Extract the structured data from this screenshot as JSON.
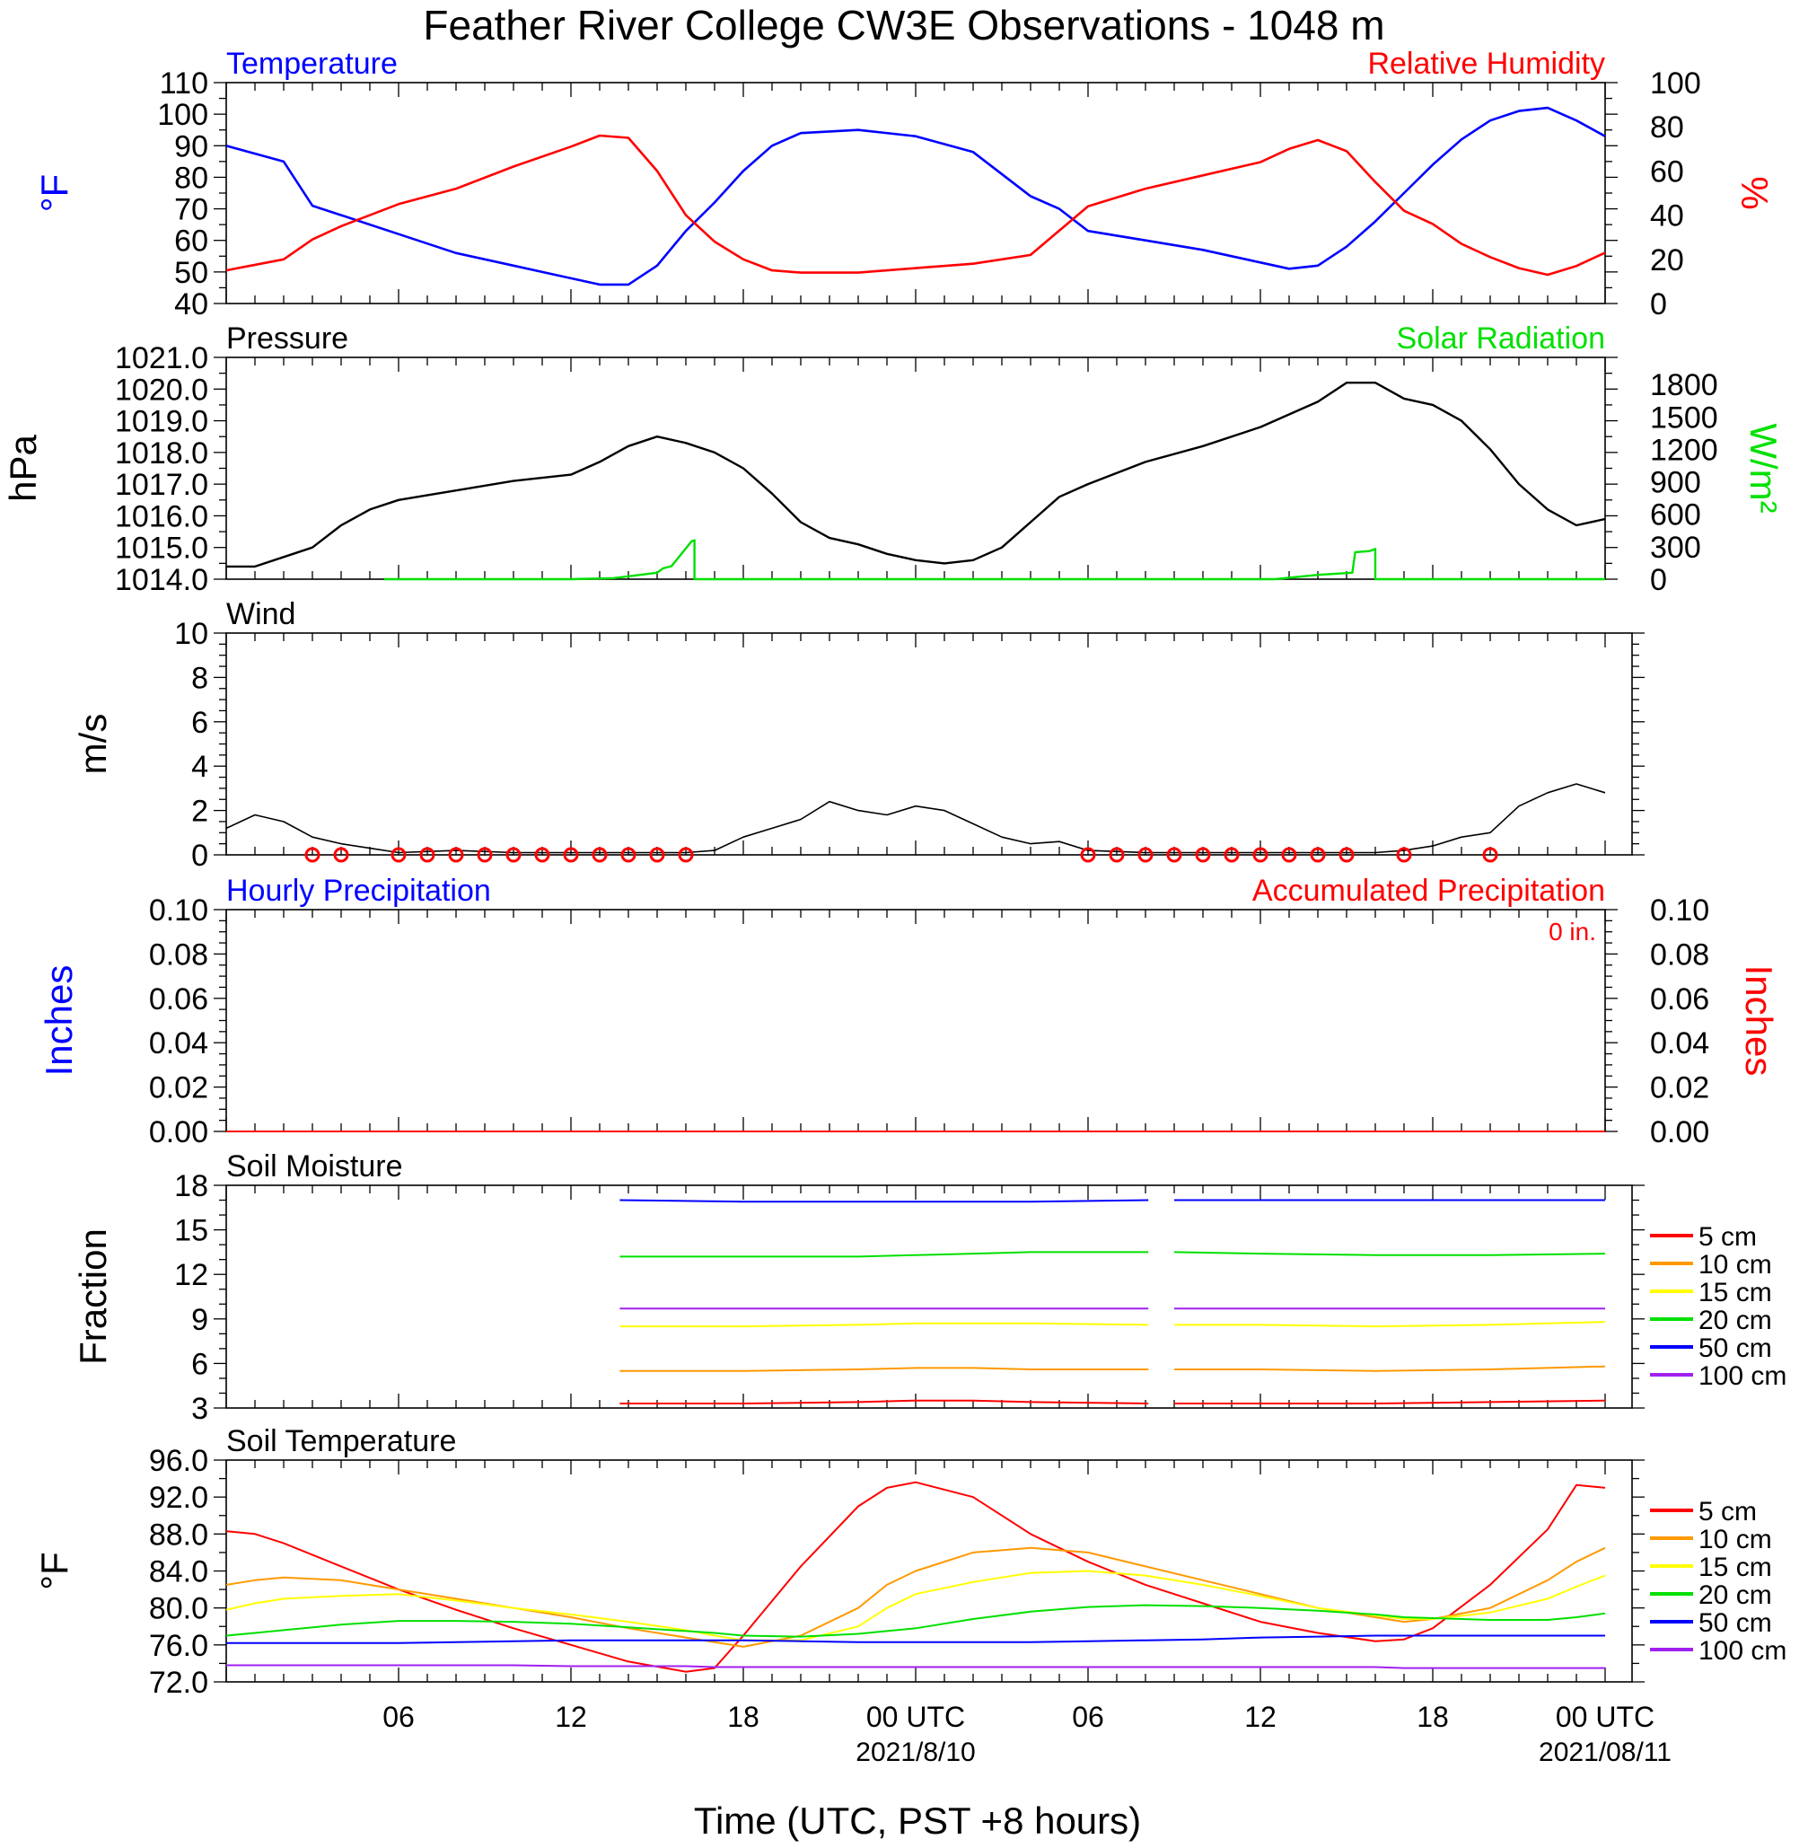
{
  "title": "Feather River College CW3E Observations - 1048 m",
  "x_axis": {
    "label": "Time (UTC, PST +8 hours)",
    "tick_labels": [
      "06",
      "12",
      "18",
      "00 UTC",
      "06",
      "12",
      "18",
      "00 UTC"
    ],
    "date_labels": [
      "2021/8/10",
      "2021/08/11"
    ]
  },
  "colors": {
    "red": "#ff0000",
    "blue": "#0000ff",
    "green": "#00e000",
    "black": "#000000",
    "orange": "#ff9900",
    "yellow": "#ffff00",
    "purple": "#a020f0"
  },
  "chart_data": [
    {
      "type": "line",
      "id": "temp_rh",
      "left_title": "Temperature",
      "right_title": "Relative Humidity",
      "ylabel_left": "°F",
      "ylabel_right": "%",
      "ylim_left": [
        40,
        110
      ],
      "ylim_right": [
        0,
        100
      ],
      "yticks_left": [
        "110",
        "100",
        "90",
        "80",
        "70",
        "60",
        "50",
        "40"
      ],
      "yticks_right": [
        "100",
        "80",
        "60",
        "40",
        "20",
        "0"
      ],
      "x_hours": [
        0,
        2,
        3,
        4,
        6,
        8,
        10,
        12,
        13,
        14,
        15,
        16,
        17,
        18,
        19,
        20,
        22,
        24,
        26,
        28,
        29,
        30,
        32,
        34,
        36,
        37,
        38,
        39,
        40,
        41,
        42,
        43,
        44,
        45,
        46,
        47,
        48
      ],
      "series": [
        {
          "name": "Temperature",
          "color": "#0000ff",
          "axis": "left",
          "values": [
            90,
            85,
            71,
            68,
            62,
            56,
            52,
            48,
            46,
            46,
            52,
            63,
            72,
            82,
            90,
            94,
            95,
            93,
            88,
            74,
            70,
            63,
            60,
            57,
            53,
            51,
            52,
            58,
            66,
            75,
            84,
            92,
            98,
            101,
            102,
            98,
            93
          ]
        },
        {
          "name": "Relative Humidity",
          "color": "#ff0000",
          "axis": "right",
          "values": [
            15,
            20,
            29,
            35,
            45,
            52,
            62,
            71,
            76,
            75,
            60,
            40,
            28,
            20,
            15,
            14,
            14,
            16,
            18,
            22,
            33,
            44,
            52,
            58,
            64,
            70,
            74,
            69,
            55,
            42,
            36,
            27,
            21,
            16,
            13,
            17,
            23
          ]
        }
      ]
    },
    {
      "type": "line",
      "id": "pressure_solar",
      "left_title": "Pressure",
      "right_title": "Solar Radiation",
      "ylabel_left": "hPa",
      "ylabel_right": "W/m²",
      "ylim_left": [
        1014.0,
        1021.0
      ],
      "ylim_right": [
        0,
        2050
      ],
      "yticks_left": [
        "1021.0",
        "1020.0",
        "1019.0",
        "1018.0",
        "1017.0",
        "1016.0",
        "1015.0",
        "1014.0"
      ],
      "yticks_right": [
        "1800",
        "1500",
        "1200",
        "900",
        "600",
        "300",
        "0"
      ],
      "series": [
        {
          "name": "Pressure",
          "color": "#000000",
          "axis": "left",
          "x_hours": [
            0,
            1,
            2,
            3,
            4,
            5,
            6,
            8,
            10,
            12,
            13,
            14,
            15,
            16,
            17,
            18,
            19,
            20,
            21,
            22,
            23,
            24,
            25,
            26,
            27,
            28,
            29,
            30,
            32,
            34,
            36,
            38,
            39,
            40,
            41,
            42,
            43,
            44,
            45,
            46,
            47,
            48
          ],
          "values": [
            1014.4,
            1014.4,
            1014.7,
            1015.0,
            1015.7,
            1016.2,
            1016.5,
            1016.8,
            1017.1,
            1017.3,
            1017.7,
            1018.2,
            1018.5,
            1018.3,
            1018.0,
            1017.5,
            1016.7,
            1015.8,
            1015.3,
            1015.1,
            1014.8,
            1014.6,
            1014.5,
            1014.6,
            1015.0,
            1015.8,
            1016.6,
            1017.0,
            1017.7,
            1018.2,
            1018.8,
            1019.6,
            1020.2,
            1020.2,
            1019.7,
            1019.5,
            1019.0,
            1018.1,
            1017.0,
            1016.2,
            1015.7,
            1015.9
          ]
        },
        {
          "name": "Solar Radiation",
          "color": "#00e000",
          "axis": "right",
          "x_hours": [
            5.5,
            9,
            12,
            13.5,
            15,
            15.2,
            15.5,
            16.2,
            16.3,
            16.3,
            28.2,
            33,
            36.5,
            38,
            39.2,
            39.3,
            39.8,
            40,
            40,
            48
          ],
          "values": [
            0,
            0,
            0,
            10,
            60,
            100,
            120,
            350,
            360,
            0,
            0,
            0,
            0,
            40,
            60,
            250,
            260,
            280,
            0,
            0
          ]
        }
      ]
    },
    {
      "type": "line",
      "id": "wind",
      "left_title": "Wind",
      "ylabel_left": "m/s",
      "ylim_left": [
        0,
        10
      ],
      "yticks_left": [
        "10",
        "8",
        "6",
        "4",
        "2",
        "0"
      ],
      "x_hours": [
        0,
        1,
        2,
        3,
        4,
        5,
        6,
        8,
        10,
        12,
        14,
        16,
        17,
        18,
        19,
        20,
        21,
        22,
        23,
        24,
        25,
        26,
        27,
        28,
        29,
        30,
        32,
        34,
        36,
        38,
        40,
        41,
        42,
        43,
        44,
        45,
        46,
        47,
        48
      ],
      "series": [
        {
          "name": "Wind speed",
          "color": "#000000",
          "values": [
            1.2,
            1.8,
            1.5,
            0.8,
            0.5,
            0.3,
            0.1,
            0.2,
            0.1,
            0.1,
            0.1,
            0.1,
            0.2,
            0.8,
            1.2,
            1.6,
            2.4,
            2.0,
            1.8,
            2.2,
            2.0,
            1.4,
            0.8,
            0.5,
            0.6,
            0.2,
            0.1,
            0.1,
            0.1,
            0.1,
            0.1,
            0.2,
            0.4,
            0.8,
            1.0,
            2.2,
            2.8,
            3.2,
            2.8
          ]
        }
      ],
      "calm_hours": [
        3,
        4,
        6,
        7,
        8,
        9,
        10,
        11,
        12,
        13,
        14,
        15,
        16,
        30,
        31,
        32,
        33,
        34,
        35,
        36,
        37,
        38,
        39,
        41,
        44
      ]
    },
    {
      "type": "line",
      "id": "precip",
      "left_title": "Hourly Precipitation",
      "right_title": "Accumulated Precipitation",
      "annotation": "0 in.",
      "ylabel_left": "Inches",
      "ylabel_right": "Inches",
      "ylim_left": [
        0,
        0.1
      ],
      "ylim_right": [
        0,
        0.1
      ],
      "yticks_left": [
        "0.10",
        "0.08",
        "0.06",
        "0.04",
        "0.02",
        "0.00"
      ],
      "yticks_right": [
        "0.10",
        "0.08",
        "0.06",
        "0.04",
        "0.02",
        "0.00"
      ],
      "x_hours": [
        0,
        48
      ],
      "series": [
        {
          "name": "Hourly Precipitation",
          "color": "#0000ff",
          "values": [
            0,
            0
          ]
        },
        {
          "name": "Accumulated Precipitation",
          "color": "#ff0000",
          "values": [
            0,
            0
          ]
        }
      ]
    },
    {
      "type": "line",
      "id": "soil_moisture",
      "left_title": "Soil Moisture",
      "ylabel_left": "Fraction",
      "ylim_left": [
        3,
        18
      ],
      "yticks_left": [
        "18",
        "15",
        "12",
        "9",
        "6",
        "3"
      ],
      "x_hours": [
        13.7,
        18,
        22,
        24,
        26,
        28,
        32.1,
        33,
        36,
        40,
        44,
        48
      ],
      "legend": [
        "5 cm",
        "10 cm",
        "15 cm",
        "20 cm",
        "50 cm",
        "100 cm"
      ],
      "series": [
        {
          "name": "5 cm",
          "color": "#ff0000",
          "values": [
            3.3,
            3.3,
            3.4,
            3.5,
            3.5,
            3.4,
            3.3,
            3.3,
            3.3,
            3.3,
            3.4,
            3.5
          ]
        },
        {
          "name": "10 cm",
          "color": "#ff9900",
          "values": [
            5.5,
            5.5,
            5.6,
            5.7,
            5.7,
            5.6,
            5.6,
            5.6,
            5.6,
            5.5,
            5.6,
            5.8
          ]
        },
        {
          "name": "15 cm",
          "color": "#ffff00",
          "values": [
            8.5,
            8.5,
            8.6,
            8.7,
            8.7,
            8.7,
            8.6,
            8.6,
            8.6,
            8.5,
            8.6,
            8.8
          ]
        },
        {
          "name": "20 cm",
          "color": "#00e000",
          "values": [
            13.2,
            13.2,
            13.2,
            13.3,
            13.4,
            13.5,
            13.5,
            13.5,
            13.4,
            13.3,
            13.3,
            13.4
          ]
        },
        {
          "name": "50 cm",
          "color": "#0000ff",
          "values": [
            17.0,
            16.9,
            16.9,
            16.9,
            16.9,
            16.9,
            17.0,
            17.0,
            17.0,
            17.0,
            17.0,
            17.0
          ]
        },
        {
          "name": "100 cm",
          "color": "#a020f0",
          "values": [
            9.7,
            9.7,
            9.7,
            9.7,
            9.7,
            9.7,
            9.7,
            9.7,
            9.7,
            9.7,
            9.7,
            9.7
          ]
        }
      ]
    },
    {
      "type": "line",
      "id": "soil_temp",
      "left_title": "Soil Temperature",
      "ylabel_left": "°F",
      "ylim_left": [
        72,
        96
      ],
      "yticks_left": [
        "96.0",
        "92.0",
        "88.0",
        "84.0",
        "80.0",
        "76.0",
        "72.0"
      ],
      "x_hours": [
        0,
        1,
        2,
        4,
        6,
        8,
        10,
        12,
        14,
        16,
        17,
        18,
        20,
        22,
        23,
        24,
        26,
        28,
        30,
        32,
        34,
        36,
        38,
        40,
        41,
        42,
        44,
        46,
        47,
        48
      ],
      "legend": [
        "5 cm",
        "10 cm",
        "15 cm",
        "20 cm",
        "50 cm",
        "100 cm"
      ],
      "series": [
        {
          "name": "5 cm",
          "color": "#ff0000",
          "values": [
            88.3,
            88.0,
            87.0,
            84.5,
            82.0,
            79.8,
            77.8,
            76.0,
            74.2,
            73.1,
            73.5,
            77.0,
            84.5,
            91.0,
            93.0,
            93.6,
            92.0,
            88.0,
            85.0,
            82.5,
            80.5,
            78.5,
            77.3,
            76.4,
            76.6,
            77.8,
            82.5,
            88.5,
            93.3,
            93.0
          ]
        },
        {
          "name": "10 cm",
          "color": "#ff9900",
          "values": [
            82.5,
            83.0,
            83.3,
            83.0,
            82.0,
            81.0,
            80.0,
            79.0,
            77.8,
            76.8,
            76.3,
            75.8,
            77.0,
            80.0,
            82.5,
            84.0,
            86.0,
            86.5,
            86.0,
            84.5,
            83.0,
            81.5,
            80.0,
            79.0,
            78.5,
            78.8,
            80.0,
            83.0,
            85.0,
            86.5
          ]
        },
        {
          "name": "15 cm",
          "color": "#ffff00",
          "values": [
            79.8,
            80.5,
            81.0,
            81.3,
            81.5,
            80.8,
            80.0,
            79.3,
            78.5,
            77.6,
            77.0,
            76.5,
            76.5,
            78.0,
            80.0,
            81.5,
            82.8,
            83.8,
            84.0,
            83.5,
            82.5,
            81.3,
            80.0,
            79.2,
            78.8,
            78.8,
            79.5,
            81.0,
            82.3,
            83.5
          ]
        },
        {
          "name": "20 cm",
          "color": "#00e000",
          "values": [
            77.0,
            77.3,
            77.6,
            78.2,
            78.6,
            78.6,
            78.5,
            78.3,
            77.9,
            77.5,
            77.3,
            77.0,
            76.9,
            77.2,
            77.5,
            77.8,
            78.8,
            79.6,
            80.1,
            80.3,
            80.2,
            80.0,
            79.7,
            79.3,
            79.0,
            78.9,
            78.7,
            78.7,
            79.0,
            79.4
          ]
        },
        {
          "name": "50 cm",
          "color": "#0000ff",
          "values": [
            76.2,
            76.2,
            76.2,
            76.2,
            76.2,
            76.3,
            76.4,
            76.5,
            76.5,
            76.5,
            76.5,
            76.5,
            76.4,
            76.3,
            76.3,
            76.3,
            76.3,
            76.3,
            76.4,
            76.5,
            76.6,
            76.8,
            76.9,
            77.0,
            77.0,
            77.0,
            77.0,
            77.0,
            77.0,
            77.0
          ]
        },
        {
          "name": "100 cm",
          "color": "#a020f0",
          "values": [
            73.8,
            73.8,
            73.8,
            73.8,
            73.8,
            73.8,
            73.8,
            73.7,
            73.7,
            73.7,
            73.6,
            73.6,
            73.6,
            73.6,
            73.6,
            73.6,
            73.6,
            73.6,
            73.6,
            73.6,
            73.6,
            73.6,
            73.6,
            73.6,
            73.5,
            73.5,
            73.5,
            73.5,
            73.5,
            73.5
          ]
        }
      ]
    }
  ]
}
